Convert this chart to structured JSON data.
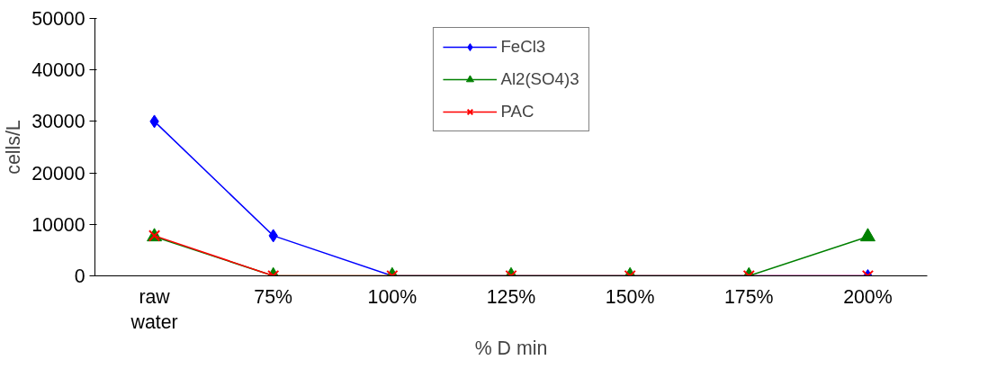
{
  "chart_data": {
    "type": "line",
    "xlabel": "% D min",
    "ylabel": "cells/L",
    "categories": [
      "raw water",
      "75%",
      "100%",
      "125%",
      "150%",
      "175%",
      "200%"
    ],
    "series": [
      {
        "name": "FeCl3",
        "color": "#0000ff",
        "marker": "diamond",
        "values": [
          30000,
          7800,
          0,
          0,
          0,
          0,
          0
        ]
      },
      {
        "name": "Al2(SO4)3",
        "color": "#008000",
        "marker": "triangle",
        "values": [
          7600,
          0,
          0,
          0,
          0,
          0,
          7600
        ]
      },
      {
        "name": "PAC",
        "color": "#ff0000",
        "marker": "cross",
        "values": [
          7800,
          0,
          0,
          0,
          0,
          0,
          0
        ]
      }
    ],
    "ylim": [
      0,
      50000
    ],
    "yticks": [
      0,
      10000,
      20000,
      30000,
      40000,
      50000
    ],
    "grid": false,
    "legend": "top",
    "line_style": "solid"
  }
}
